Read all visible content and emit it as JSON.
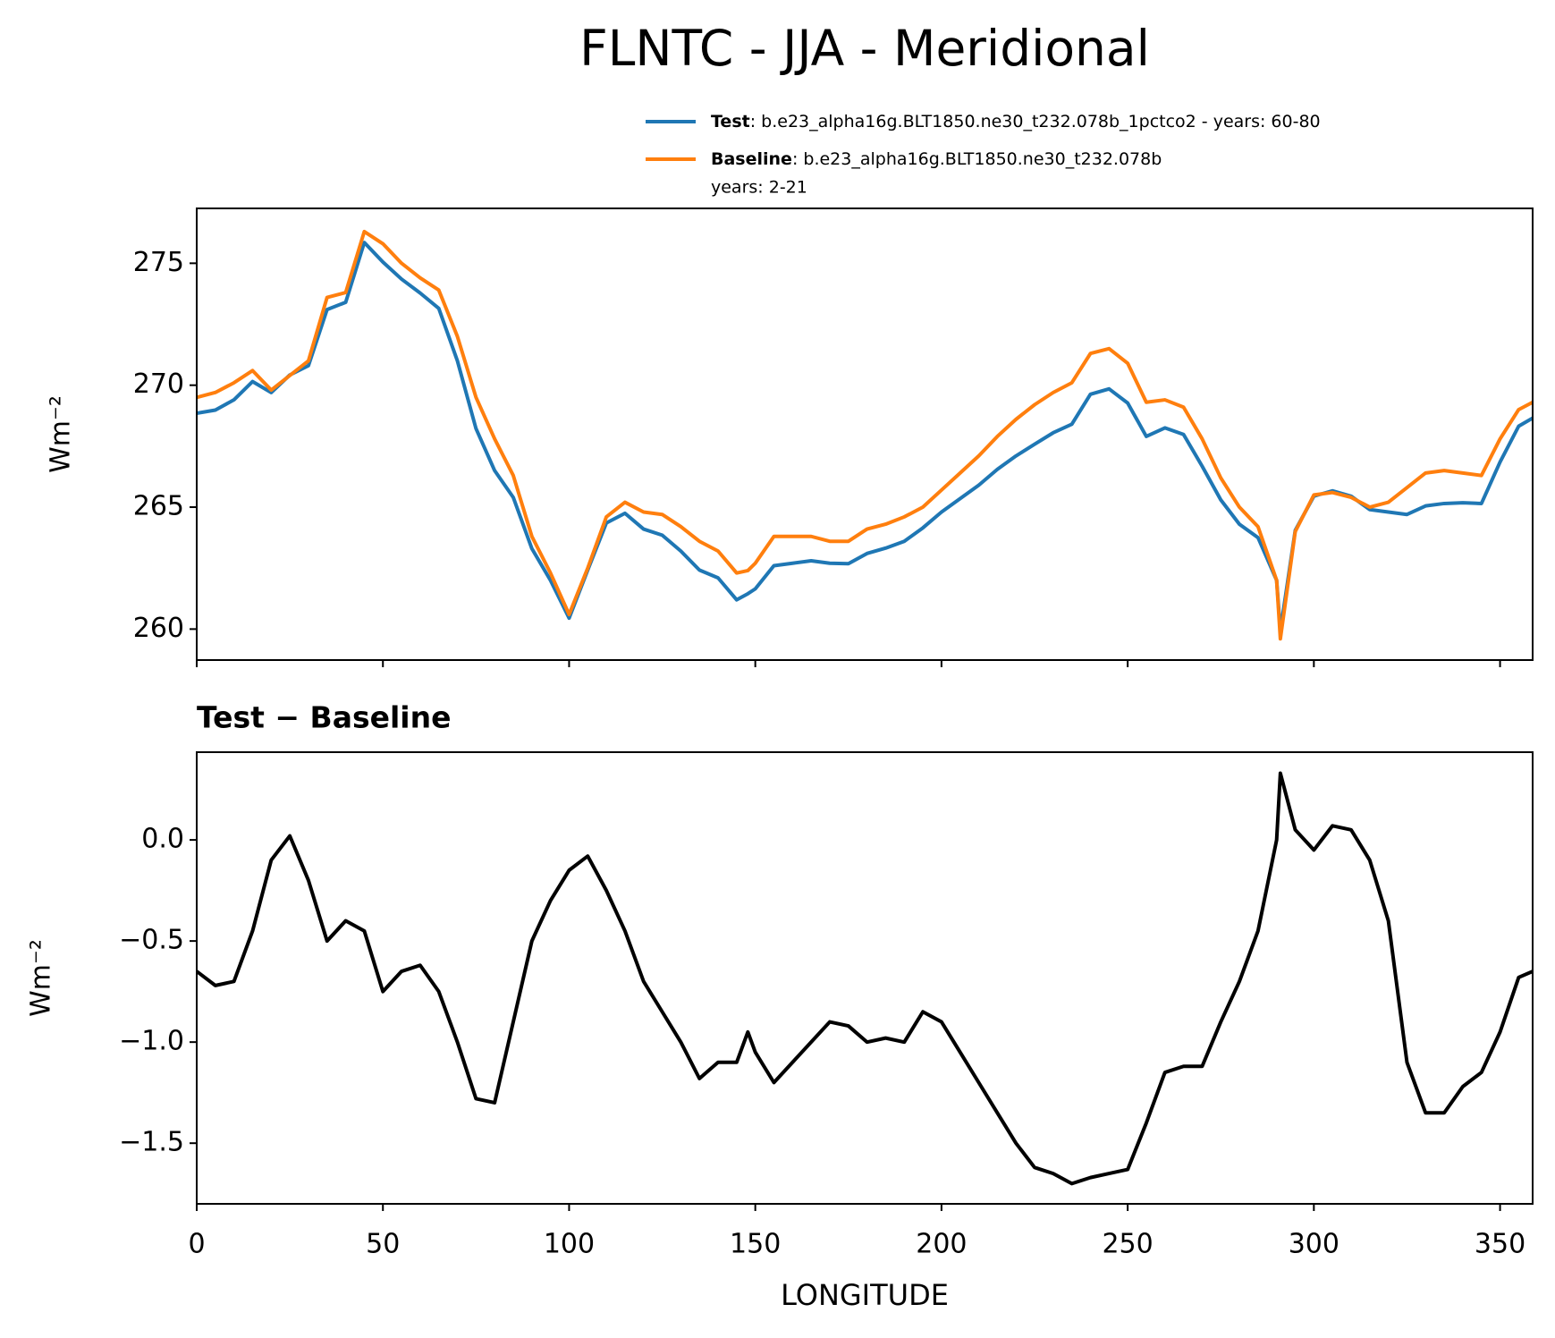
{
  "title": "FLNTC - JJA - Meridional",
  "chart_data": [
    {
      "type": "line",
      "ylabel": "Wm⁻²",
      "x": [
        0,
        5,
        10,
        15,
        20,
        25,
        30,
        35,
        40,
        45,
        50,
        55,
        60,
        65,
        70,
        75,
        80,
        85,
        90,
        95,
        100,
        105,
        110,
        115,
        120,
        125,
        130,
        135,
        140,
        145,
        148,
        150,
        155,
        160,
        165,
        170,
        175,
        180,
        185,
        190,
        195,
        200,
        205,
        210,
        215,
        220,
        225,
        230,
        235,
        240,
        245,
        250,
        255,
        260,
        265,
        270,
        275,
        280,
        285,
        290,
        291,
        295,
        300,
        305,
        310,
        315,
        320,
        325,
        330,
        335,
        340,
        345,
        350,
        355,
        358.75
      ],
      "series": [
        {
          "name": "Test",
          "legend_text": [
            ": b.e23_alpha16g.BLT1850.ne30_t232.078b_1pctco2 - years: 60-80"
          ],
          "color": "#1f77b4",
          "values": [
            268.85,
            268.98,
            269.4,
            270.15,
            269.7,
            270.42,
            270.8,
            273.1,
            273.4,
            275.85,
            275.05,
            274.35,
            273.78,
            273.15,
            271.0,
            268.22,
            266.5,
            265.4,
            263.3,
            262.0,
            260.45,
            262.42,
            264.35,
            264.75,
            264.1,
            263.85,
            263.2,
            262.42,
            262.1,
            261.2,
            261.45,
            261.65,
            262.6,
            262.7,
            262.8,
            262.7,
            262.68,
            263.1,
            263.32,
            263.6,
            264.15,
            264.8,
            265.35,
            265.9,
            266.55,
            267.1,
            267.58,
            268.05,
            268.4,
            269.63,
            269.85,
            269.27,
            267.9,
            268.25,
            267.98,
            266.68,
            265.3,
            264.3,
            263.75,
            262.0,
            259.93,
            264.05,
            265.45,
            265.67,
            265.45,
            264.9,
            264.8,
            264.7,
            265.05,
            265.15,
            265.18,
            265.15,
            266.85,
            268.32,
            268.65
          ]
        },
        {
          "name": "Baseline",
          "legend_text": [
            ": b.e23_alpha16g.BLT1850.ne30_t232.078b",
            "years: 2-21"
          ],
          "color": "#ff7f0e",
          "values": [
            269.5,
            269.7,
            270.1,
            270.6,
            269.8,
            270.4,
            271.0,
            273.6,
            273.8,
            276.3,
            275.8,
            275.0,
            274.4,
            273.9,
            272.0,
            269.5,
            267.8,
            266.3,
            263.8,
            262.3,
            260.6,
            262.5,
            264.6,
            265.2,
            264.8,
            264.7,
            264.2,
            263.6,
            263.2,
            262.3,
            262.4,
            262.7,
            263.8,
            263.8,
            263.8,
            263.6,
            263.6,
            264.1,
            264.3,
            264.6,
            265.0,
            265.7,
            266.4,
            267.1,
            267.9,
            268.6,
            269.2,
            269.7,
            270.1,
            271.3,
            271.5,
            270.9,
            269.3,
            269.4,
            269.1,
            267.8,
            266.2,
            265.0,
            264.2,
            262.0,
            259.6,
            264.0,
            265.5,
            265.6,
            265.4,
            265.0,
            265.2,
            265.8,
            266.4,
            266.5,
            266.4,
            266.3,
            267.8,
            269.0,
            269.3
          ]
        }
      ],
      "xlim": [
        0,
        358.75
      ],
      "xticks": [
        0,
        50,
        100,
        150,
        200,
        250,
        300,
        350
      ],
      "xtick_labels": false,
      "ylim": [
        258.73,
        277.25
      ],
      "yticks": [
        260,
        265,
        270,
        275
      ],
      "legend": "upper right"
    },
    {
      "type": "line",
      "title": "Test − Baseline",
      "ylabel": "Wm⁻²",
      "xlabel": "LONGITUDE",
      "x": [
        0,
        5,
        10,
        15,
        20,
        25,
        30,
        35,
        40,
        45,
        50,
        55,
        60,
        65,
        70,
        75,
        80,
        85,
        90,
        95,
        100,
        105,
        110,
        115,
        120,
        125,
        130,
        135,
        140,
        145,
        148,
        150,
        155,
        160,
        165,
        170,
        175,
        180,
        185,
        190,
        195,
        200,
        205,
        210,
        215,
        220,
        225,
        230,
        235,
        240,
        245,
        250,
        255,
        260,
        265,
        270,
        275,
        280,
        285,
        290,
        291,
        295,
        300,
        305,
        310,
        315,
        320,
        325,
        330,
        335,
        340,
        345,
        350,
        355,
        358.75
      ],
      "series": [
        {
          "color": "#000000",
          "values": [
            -0.65,
            -0.72,
            -0.7,
            -0.45,
            -0.1,
            0.02,
            -0.2,
            -0.5,
            -0.4,
            -0.45,
            -0.75,
            -0.65,
            -0.62,
            -0.75,
            -1.0,
            -1.28,
            -1.3,
            -0.9,
            -0.5,
            -0.3,
            -0.15,
            -0.08,
            -0.25,
            -0.45,
            -0.7,
            -0.85,
            -1.0,
            -1.18,
            -1.1,
            -1.1,
            -0.95,
            -1.05,
            -1.2,
            -1.1,
            -1.0,
            -0.9,
            -0.92,
            -1.0,
            -0.98,
            -1.0,
            -0.85,
            -0.9,
            -1.05,
            -1.2,
            -1.35,
            -1.5,
            -1.62,
            -1.65,
            -1.7,
            -1.67,
            -1.65,
            -1.63,
            -1.4,
            -1.15,
            -1.12,
            -1.12,
            -0.9,
            -0.7,
            -0.45,
            0.0,
            0.33,
            0.05,
            -0.05,
            0.07,
            0.05,
            -0.1,
            -0.4,
            -1.1,
            -1.35,
            -1.35,
            -1.22,
            -1.15,
            -0.95,
            -0.68,
            -0.65
          ]
        }
      ],
      "xlim": [
        0,
        358.75
      ],
      "xticks": [
        0,
        50,
        100,
        150,
        200,
        250,
        300,
        350
      ],
      "xtick_labels": true,
      "ylim": [
        -1.8,
        0.434
      ],
      "yticks": [
        {
          "value": -1.5,
          "label": "−1.5"
        },
        {
          "value": -1.0,
          "label": "−1.0"
        },
        {
          "value": -0.5,
          "label": "−0.5"
        },
        {
          "value": 0,
          "label": "0.0"
        }
      ]
    }
  ]
}
